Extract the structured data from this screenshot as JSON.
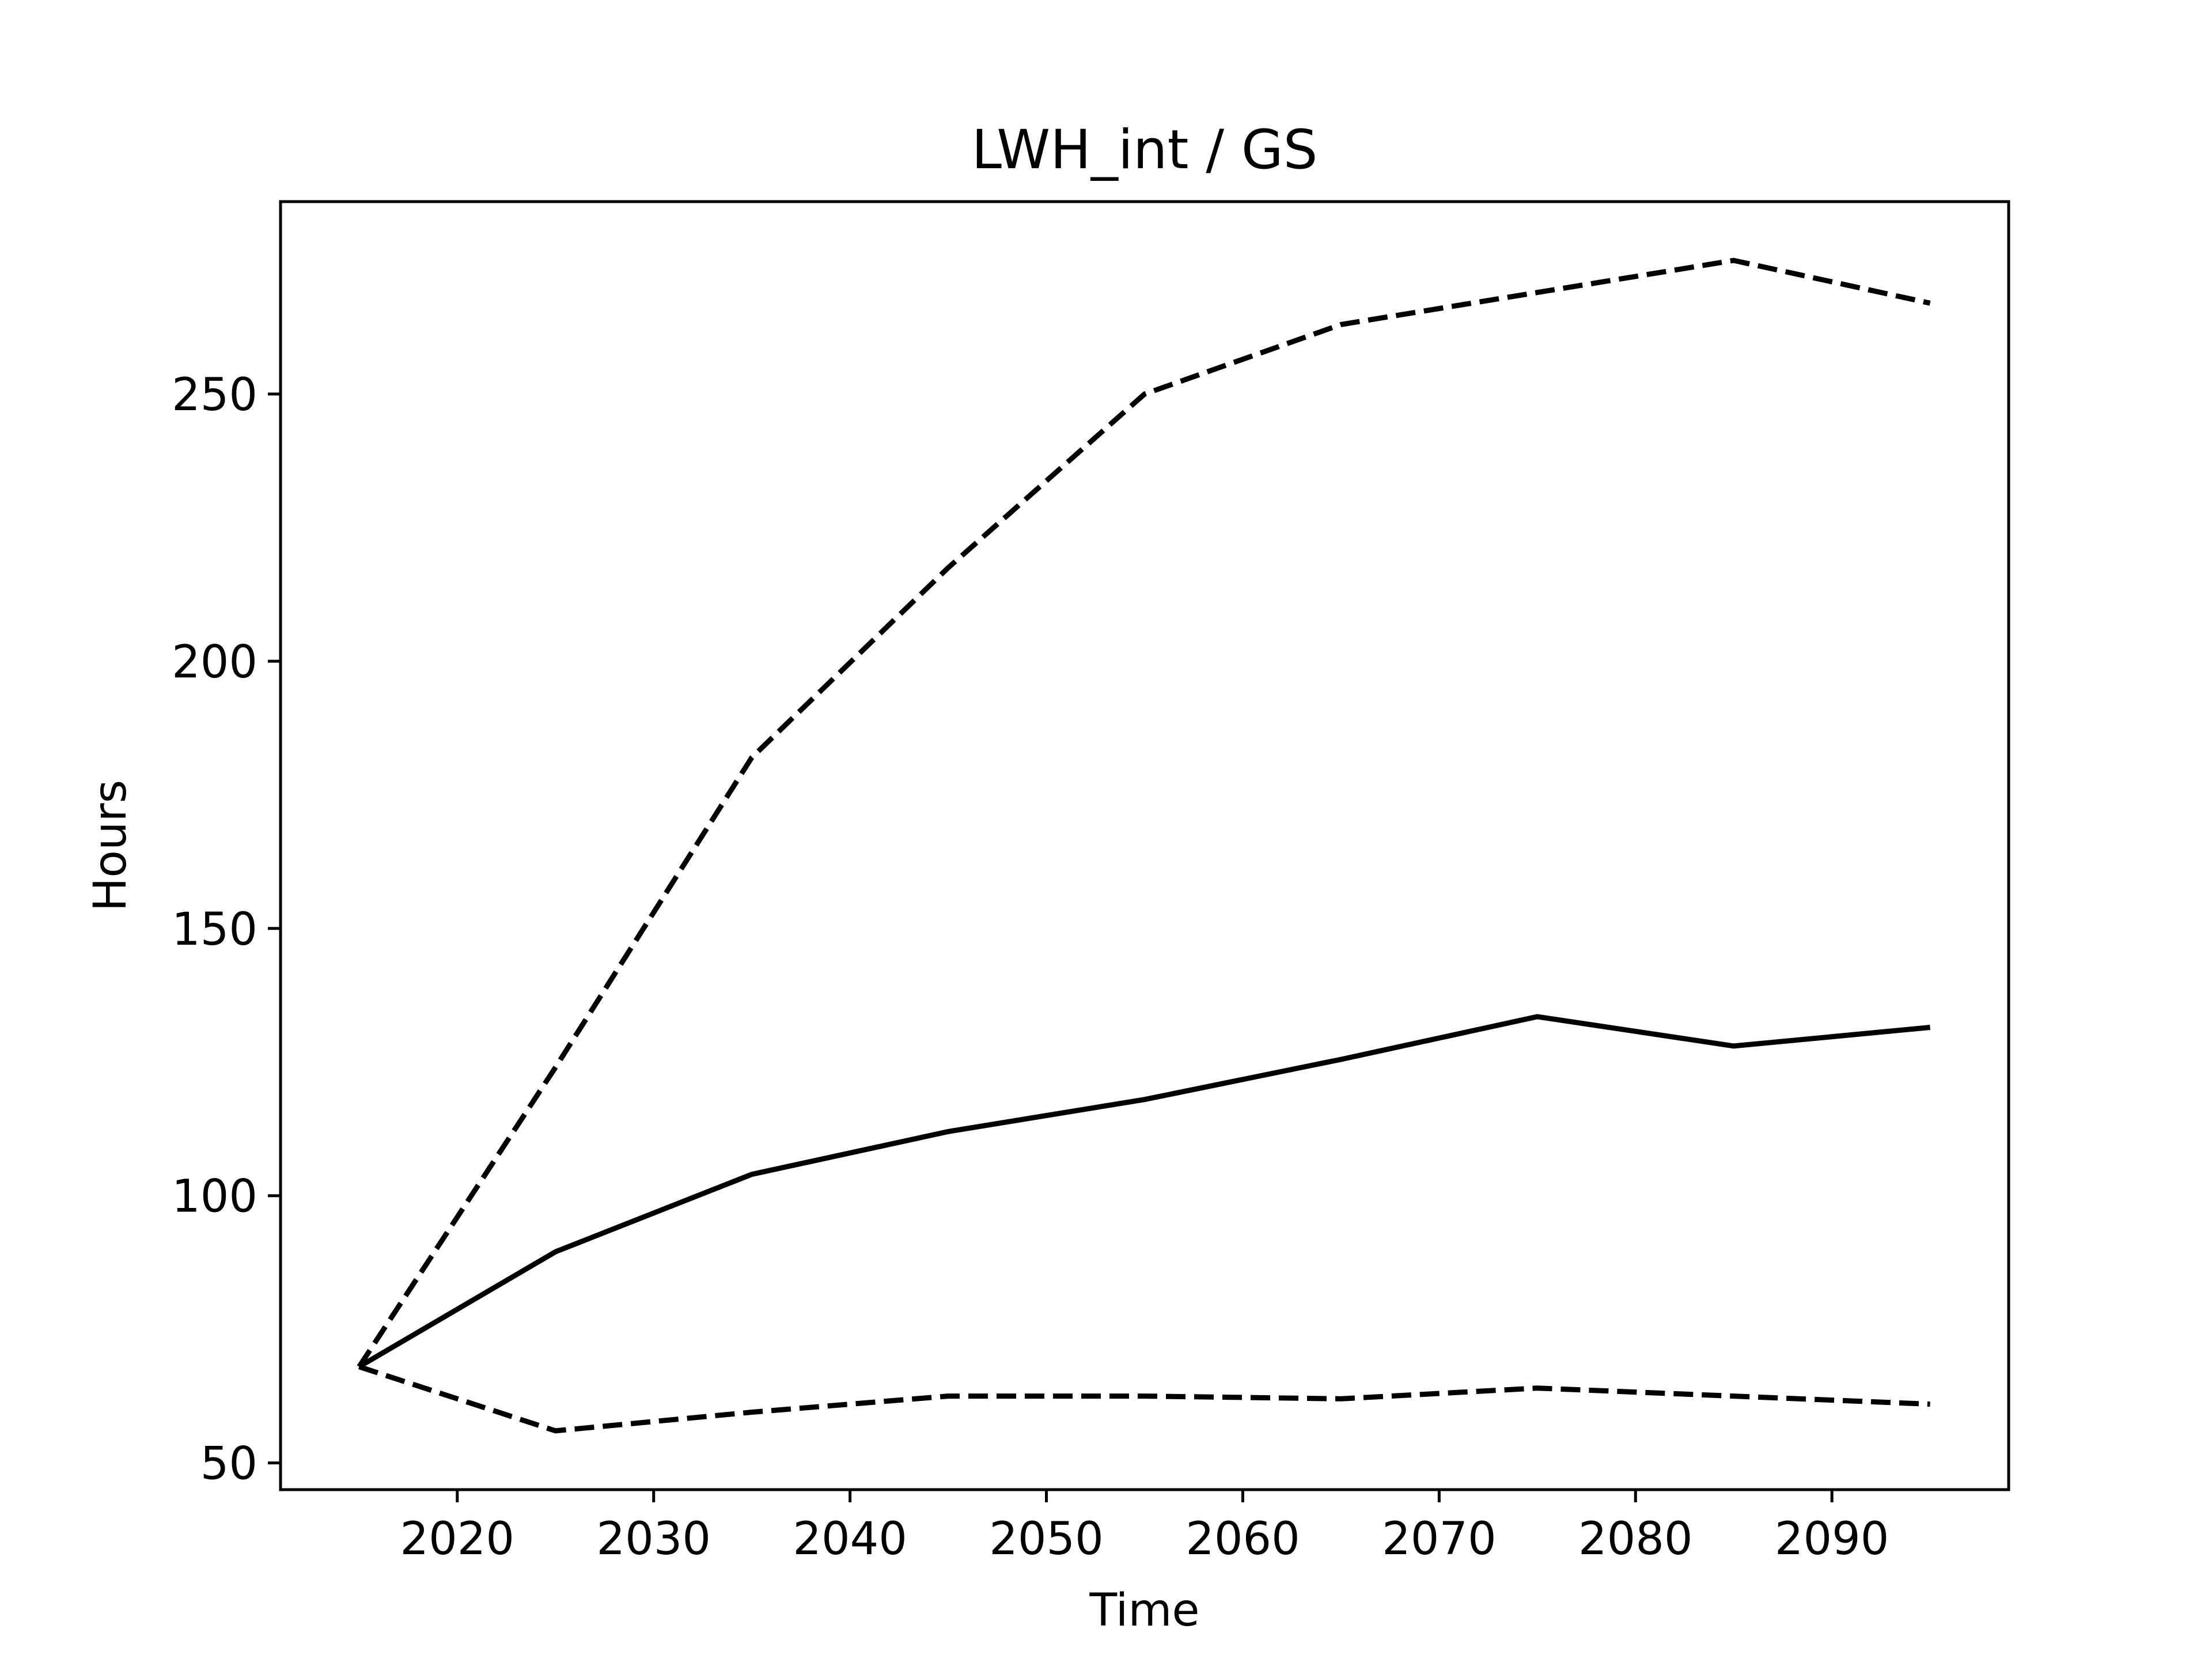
{
  "chart_data": {
    "type": "line",
    "title": "LWH_int / GS",
    "xlabel": "Time",
    "ylabel": "Hours",
    "xlim": [
      2011,
      2099
    ],
    "ylim": [
      45,
      286
    ],
    "x_ticks": [
      2020,
      2030,
      2040,
      2050,
      2060,
      2070,
      2080,
      2090
    ],
    "y_ticks": [
      50,
      100,
      150,
      200,
      250
    ],
    "grid": false,
    "legend": "none",
    "x": [
      2015,
      2025,
      2035,
      2045,
      2055,
      2065,
      2075,
      2085,
      2095
    ],
    "series": [
      {
        "style": "solid",
        "color": "#000000",
        "values": [
          68,
          89.5,
          104,
          112,
          118,
          125.5,
          133.5,
          128,
          131.5
        ]
      },
      {
        "style": "dashed",
        "color": "#000000",
        "values": [
          68,
          124,
          182,
          217.5,
          250,
          263,
          269,
          275,
          267
        ]
      },
      {
        "style": "dashed",
        "color": "#000000",
        "values": [
          68,
          56,
          59.5,
          62.5,
          62.5,
          62,
          64,
          62.5,
          61
        ]
      }
    ]
  }
}
